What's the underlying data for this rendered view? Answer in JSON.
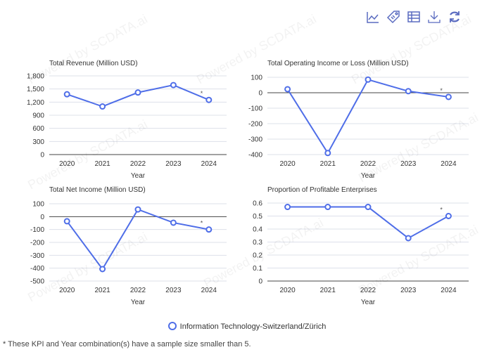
{
  "toolbar": {
    "icons": [
      "line-chart-icon",
      "tag-icon",
      "table-icon",
      "download-icon",
      "refresh-icon"
    ]
  },
  "watermark": "Powered by SCDATA.ai",
  "legend": {
    "label": "Information Technology-Switzerland/Zürich",
    "color": "#4f6ee8"
  },
  "footnote": "* These KPI and Year combination(s) have a sample size smaller than 5.",
  "chart_data": [
    {
      "type": "line",
      "title": "Total Revenue (Million USD)",
      "xlabel": "Year",
      "categories": [
        "2020",
        "2021",
        "2022",
        "2023",
        "2024"
      ],
      "values": [
        1380,
        1100,
        1420,
        1590,
        1250
      ],
      "ylim": [
        0,
        1800
      ],
      "yticks": [
        0,
        300,
        600,
        900,
        1200,
        1500,
        1800
      ],
      "ytick_labels": [
        "0",
        "300",
        "600",
        "900",
        "1,200",
        "1,500",
        "1,800"
      ],
      "asterisk": "2024"
    },
    {
      "type": "line",
      "title": "Total Operating Income or Loss (Million USD)",
      "xlabel": "Year",
      "categories": [
        "2020",
        "2021",
        "2022",
        "2023",
        "2024"
      ],
      "values": [
        23,
        -390,
        85,
        10,
        -27
      ],
      "ylim": [
        -400,
        100
      ],
      "yticks": [
        -400,
        -300,
        -200,
        -100,
        0,
        100
      ],
      "ytick_labels": [
        "-400",
        "-300",
        "-200",
        "-100",
        "0",
        "100"
      ],
      "asterisk": "2024"
    },
    {
      "type": "line",
      "title": "Total Net Income (Million USD)",
      "xlabel": "Year",
      "categories": [
        "2020",
        "2021",
        "2022",
        "2023",
        "2024"
      ],
      "values": [
        -36,
        -407,
        56,
        -47,
        -100
      ],
      "ylim": [
        -500,
        100
      ],
      "yticks": [
        -500,
        -400,
        -300,
        -200,
        -100,
        0,
        100
      ],
      "ytick_labels": [
        "-500",
        "-400",
        "-300",
        "-200",
        "-100",
        "0",
        "100"
      ],
      "asterisk": "2024"
    },
    {
      "type": "line",
      "title": "Proportion of Profitable Enterprises",
      "xlabel": "Year",
      "categories": [
        "2020",
        "2021",
        "2022",
        "2023",
        "2024"
      ],
      "values": [
        0.57,
        0.57,
        0.57,
        0.33,
        0.5
      ],
      "ylim": [
        0,
        0.6
      ],
      "yticks": [
        0,
        0.1,
        0.2,
        0.3,
        0.4,
        0.5,
        0.6
      ],
      "ytick_labels": [
        "0",
        "0.1",
        "0.2",
        "0.3",
        "0.4",
        "0.5",
        "0.6"
      ],
      "asterisk": "2024"
    }
  ]
}
